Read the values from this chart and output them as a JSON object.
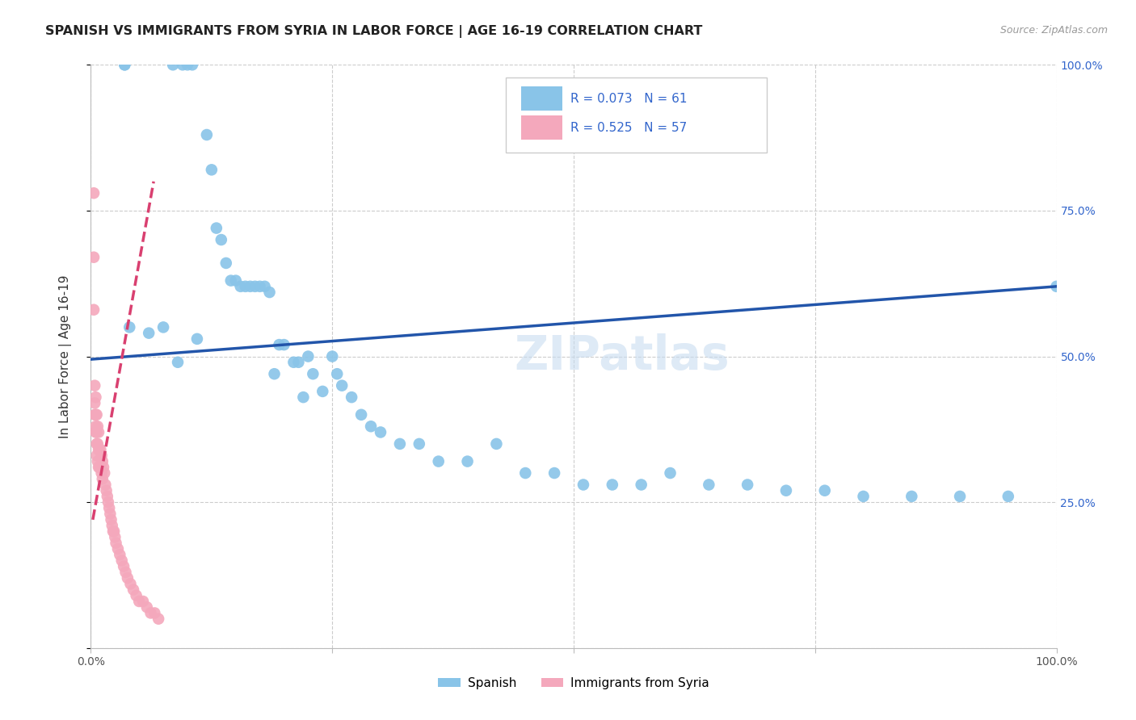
{
  "title": "SPANISH VS IMMIGRANTS FROM SYRIA IN LABOR FORCE | AGE 16-19 CORRELATION CHART",
  "source": "Source: ZipAtlas.com",
  "ylabel": "In Labor Force | Age 16-19",
  "xlim": [
    0.0,
    1.0
  ],
  "ylim": [
    0.0,
    1.0
  ],
  "watermark": "ZIPatlas",
  "legend_r1": "R = 0.073",
  "legend_n1": "N = 61",
  "legend_r2": "R = 0.525",
  "legend_n2": "N = 57",
  "color_spanish": "#89C4E8",
  "color_syria": "#F4A8BC",
  "color_trendline_spanish": "#2255AA",
  "color_trendline_syria": "#D94070",
  "background_color": "#FFFFFF",
  "spanish_x": [
    0.035,
    0.035,
    0.085,
    0.095,
    0.1,
    0.105,
    0.12,
    0.125,
    0.13,
    0.135,
    0.14,
    0.145,
    0.15,
    0.155,
    0.16,
    0.165,
    0.17,
    0.175,
    0.18,
    0.185,
    0.19,
    0.195,
    0.2,
    0.21,
    0.215,
    0.22,
    0.225,
    0.23,
    0.24,
    0.25,
    0.255,
    0.26,
    0.27,
    0.28,
    0.29,
    0.3,
    0.32,
    0.34,
    0.36,
    0.39,
    0.42,
    0.45,
    0.48,
    0.51,
    0.54,
    0.57,
    0.6,
    0.64,
    0.68,
    0.72,
    0.76,
    0.8,
    0.85,
    0.9,
    0.95,
    1.0,
    0.04,
    0.06,
    0.075,
    0.09,
    0.11
  ],
  "spanish_y": [
    1.0,
    1.0,
    1.0,
    1.0,
    1.0,
    1.0,
    0.88,
    0.82,
    0.72,
    0.7,
    0.66,
    0.63,
    0.63,
    0.62,
    0.62,
    0.62,
    0.62,
    0.62,
    0.62,
    0.61,
    0.47,
    0.52,
    0.52,
    0.49,
    0.49,
    0.43,
    0.5,
    0.47,
    0.44,
    0.5,
    0.47,
    0.45,
    0.43,
    0.4,
    0.38,
    0.37,
    0.35,
    0.35,
    0.32,
    0.32,
    0.35,
    0.3,
    0.3,
    0.28,
    0.28,
    0.28,
    0.3,
    0.28,
    0.28,
    0.27,
    0.27,
    0.26,
    0.26,
    0.26,
    0.26,
    0.62,
    0.55,
    0.54,
    0.55,
    0.49,
    0.53
  ],
  "syria_x": [
    0.004,
    0.004,
    0.004,
    0.005,
    0.005,
    0.005,
    0.005,
    0.006,
    0.006,
    0.006,
    0.006,
    0.007,
    0.007,
    0.007,
    0.008,
    0.008,
    0.008,
    0.009,
    0.009,
    0.01,
    0.01,
    0.011,
    0.011,
    0.012,
    0.012,
    0.013,
    0.014,
    0.015,
    0.016,
    0.017,
    0.018,
    0.019,
    0.02,
    0.021,
    0.022,
    0.023,
    0.024,
    0.025,
    0.026,
    0.028,
    0.03,
    0.032,
    0.034,
    0.036,
    0.038,
    0.041,
    0.044,
    0.047,
    0.05,
    0.054,
    0.058,
    0.062,
    0.066,
    0.07,
    0.003,
    0.003,
    0.003
  ],
  "syria_y": [
    0.45,
    0.42,
    0.4,
    0.43,
    0.4,
    0.38,
    0.37,
    0.4,
    0.37,
    0.35,
    0.33,
    0.38,
    0.35,
    0.32,
    0.37,
    0.34,
    0.31,
    0.34,
    0.31,
    0.34,
    0.31,
    0.33,
    0.3,
    0.32,
    0.29,
    0.31,
    0.3,
    0.28,
    0.27,
    0.26,
    0.25,
    0.24,
    0.23,
    0.22,
    0.21,
    0.2,
    0.2,
    0.19,
    0.18,
    0.17,
    0.16,
    0.15,
    0.14,
    0.13,
    0.12,
    0.11,
    0.1,
    0.09,
    0.08,
    0.08,
    0.07,
    0.06,
    0.06,
    0.05,
    0.78,
    0.67,
    0.58
  ],
  "spanish_trendline_x": [
    0.0,
    1.0
  ],
  "spanish_trendline_y": [
    0.495,
    0.62
  ],
  "syria_trendline_x0": 0.001,
  "syria_trendline_x1": 0.075
}
